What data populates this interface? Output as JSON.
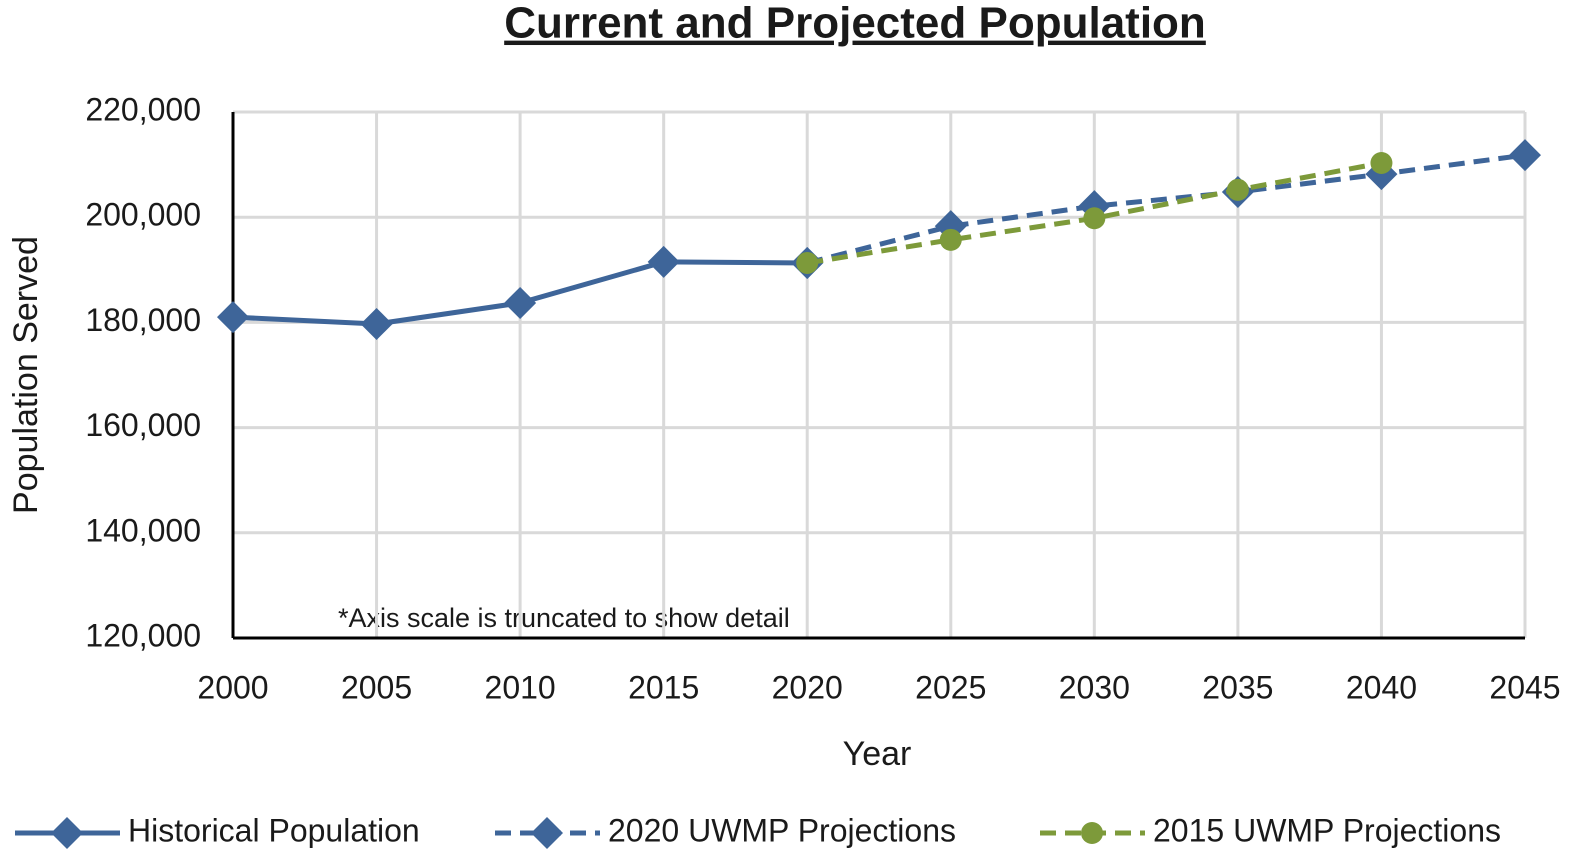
{
  "chart_data": {
    "type": "line",
    "title": "Current and Projected Population",
    "x_label": "Year",
    "y_label": "Population Served",
    "annotation": "*Axis scale is truncated to show detail",
    "x": [
      2000,
      2005,
      2010,
      2015,
      2020,
      2025,
      2030,
      2035,
      2040,
      2045
    ],
    "series": [
      {
        "name": "Historical Population",
        "color": "#3e6599",
        "dashed": false,
        "marker": "diamond",
        "values": [
          181000,
          179700,
          183700,
          191500,
          191300,
          null,
          null,
          null,
          null,
          null
        ]
      },
      {
        "name": "2020 UWMP Projections",
        "color": "#3e6599",
        "dashed": true,
        "marker": "diamond",
        "values": [
          null,
          null,
          null,
          null,
          191300,
          198300,
          202100,
          204800,
          208200,
          211800
        ]
      },
      {
        "name": "2015 UWMP Projections",
        "color": "#7d9a3a",
        "dashed": true,
        "marker": "circle",
        "values": [
          null,
          null,
          null,
          null,
          191300,
          195700,
          199800,
          205200,
          210300,
          null
        ]
      }
    ],
    "xlim": [
      2000,
      2045
    ],
    "xticks": [
      2000,
      2005,
      2010,
      2015,
      2020,
      2025,
      2030,
      2035,
      2040,
      2045
    ],
    "ylim": [
      120000,
      220000
    ],
    "yticks": [
      {
        "value": 120000,
        "label": "120,000"
      },
      {
        "value": 140000,
        "label": "140,000"
      },
      {
        "value": 160000,
        "label": "160,000"
      },
      {
        "value": 180000,
        "label": "180,000"
      },
      {
        "value": 200000,
        "label": "200,000"
      },
      {
        "value": 220000,
        "label": "220,000"
      }
    ],
    "grid": true,
    "legend": "bottom"
  }
}
